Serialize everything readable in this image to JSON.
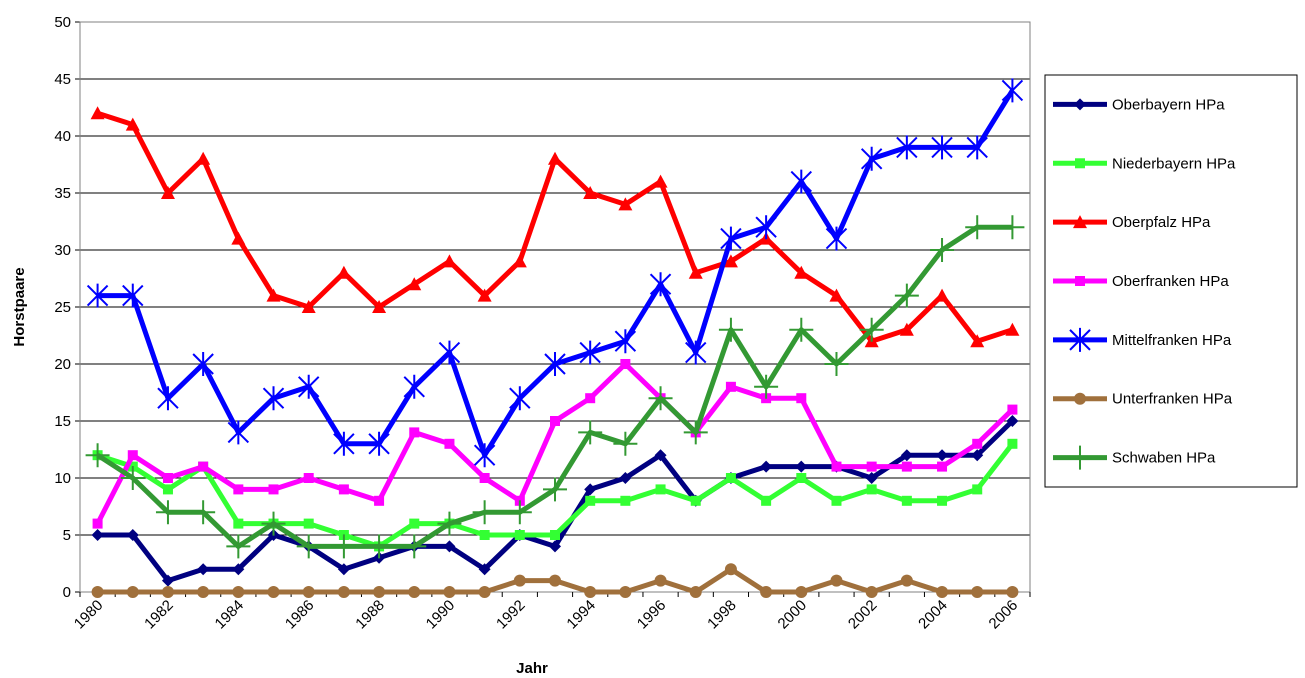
{
  "chart_data": {
    "type": "line",
    "y_label": "Horstpaare",
    "x_label": "Jahr",
    "categories": [
      "1980",
      null,
      "1982",
      null,
      "1984",
      null,
      "1986",
      null,
      "1988",
      null,
      "1990",
      null,
      "1992",
      null,
      "1994",
      null,
      "1996",
      null,
      "1998",
      null,
      "2000",
      null,
      "2002",
      null,
      "2004",
      null,
      "2006"
    ],
    "ylim": [
      0,
      50
    ],
    "yticks": [
      0,
      5,
      10,
      15,
      20,
      25,
      30,
      35,
      40,
      45,
      50
    ],
    "grid": true,
    "legend": "right",
    "series": [
      {
        "name": "Oberbayern HPa",
        "color": "#000080",
        "marker": "diamond",
        "values": [
          5,
          5,
          1,
          2,
          2,
          5,
          4,
          2,
          3,
          4,
          4,
          2,
          5,
          4,
          9,
          10,
          12,
          8,
          10,
          11,
          11,
          11,
          10,
          12,
          12,
          12,
          15
        ]
      },
      {
        "name": "Niederbayern HPa",
        "color": "#33ff33",
        "marker": "square",
        "values": [
          12,
          11,
          9,
          11,
          6,
          6,
          6,
          5,
          4,
          6,
          6,
          5,
          5,
          5,
          8,
          8,
          9,
          8,
          10,
          8,
          10,
          8,
          9,
          8,
          8,
          9,
          13
        ]
      },
      {
        "name": "Oberpfalz HPa",
        "color": "#ff0000",
        "marker": "triangle",
        "values": [
          42,
          41,
          35,
          38,
          31,
          26,
          25,
          28,
          25,
          27,
          29,
          26,
          29,
          38,
          35,
          34,
          36,
          28,
          29,
          31,
          28,
          26,
          22,
          23,
          26,
          22,
          23
        ]
      },
      {
        "name": "Oberfranken HPa",
        "color": "#ff00ff",
        "marker": "square",
        "values": [
          6,
          12,
          10,
          11,
          9,
          9,
          10,
          9,
          8,
          14,
          13,
          10,
          8,
          15,
          17,
          20,
          17,
          14,
          18,
          17,
          17,
          11,
          11,
          11,
          11,
          13,
          16
        ]
      },
      {
        "name": "Mittelfranken HPa",
        "color": "#0000ff",
        "marker": "star",
        "values": [
          26,
          26,
          17,
          20,
          14,
          17,
          18,
          13,
          13,
          18,
          21,
          12,
          17,
          20,
          21,
          22,
          27,
          21,
          31,
          32,
          36,
          31,
          38,
          39,
          39,
          39,
          44
        ]
      },
      {
        "name": "Unterfranken HPa",
        "color": "#a0703c",
        "marker": "circle",
        "values": [
          0,
          0,
          0,
          0,
          0,
          0,
          0,
          0,
          0,
          0,
          0,
          0,
          1,
          1,
          0,
          0,
          1,
          0,
          2,
          0,
          0,
          1,
          0,
          1,
          0,
          0,
          0
        ]
      },
      {
        "name": "Schwaben HPa",
        "color": "#339933",
        "marker": "plus",
        "values": [
          12,
          10,
          7,
          7,
          4,
          6,
          4,
          4,
          4,
          4,
          6,
          7,
          7,
          9,
          14,
          13,
          17,
          14,
          23,
          18,
          23,
          20,
          23,
          26,
          30,
          32,
          32
        ]
      }
    ]
  }
}
